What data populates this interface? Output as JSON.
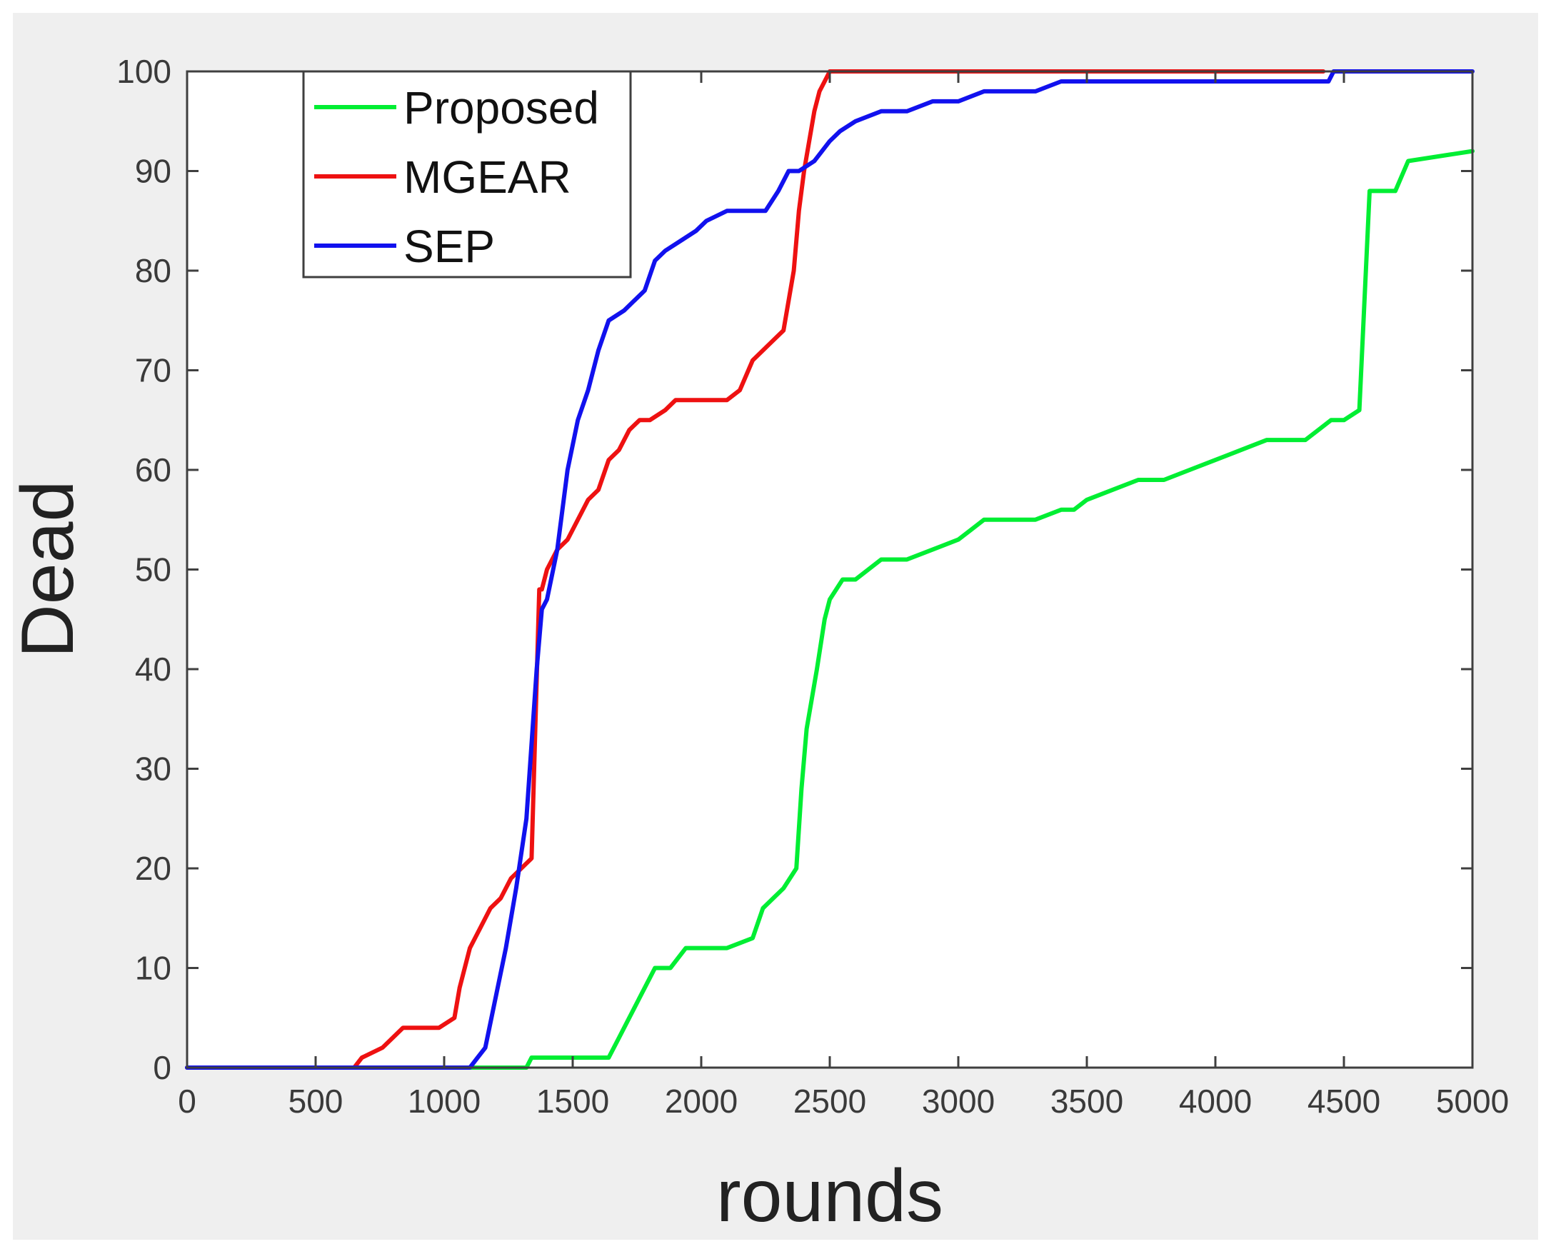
{
  "chart_data": {
    "type": "line",
    "title": "",
    "xlabel": "rounds",
    "ylabel": "Dead",
    "xlim": [
      0,
      5000
    ],
    "ylim": [
      0,
      100
    ],
    "xticks": [
      0,
      500,
      1000,
      1500,
      2000,
      2500,
      3000,
      3500,
      4000,
      4500,
      5000
    ],
    "yticks": [
      0,
      10,
      20,
      30,
      40,
      50,
      60,
      70,
      80,
      90,
      100
    ],
    "grid": false,
    "legend_position": "top-left",
    "series": [
      {
        "name": "Proposed",
        "color": "#00ee33",
        "x": [
          0,
          1100,
          1320,
          1340,
          1640,
          1680,
          1720,
          1760,
          1820,
          1880,
          1940,
          2000,
          2100,
          2200,
          2240,
          2280,
          2320,
          2370,
          2390,
          2410,
          2430,
          2450,
          2480,
          2500,
          2550,
          2600,
          2650,
          2700,
          2800,
          2900,
          3000,
          3050,
          3100,
          3200,
          3300,
          3400,
          3450,
          3500,
          3600,
          3700,
          3800,
          3900,
          4000,
          4100,
          4200,
          4300,
          4350,
          4400,
          4450,
          4500,
          4560,
          4600,
          4700,
          4750,
          5000
        ],
        "y": [
          0,
          0,
          0,
          1,
          1,
          3,
          5,
          7,
          10,
          10,
          12,
          12,
          12,
          13,
          16,
          17,
          18,
          20,
          28,
          34,
          37,
          40,
          45,
          47,
          49,
          49,
          50,
          51,
          51,
          52,
          53,
          54,
          55,
          55,
          55,
          56,
          56,
          57,
          58,
          59,
          59,
          60,
          61,
          62,
          63,
          63,
          63,
          64,
          65,
          65,
          66,
          88,
          88,
          91,
          92
        ]
      },
      {
        "name": "MGEAR",
        "color": "#ee1111",
        "x": [
          0,
          650,
          680,
          760,
          800,
          840,
          900,
          980,
          1040,
          1060,
          1100,
          1140,
          1180,
          1220,
          1260,
          1300,
          1340,
          1370,
          1380,
          1400,
          1440,
          1480,
          1520,
          1560,
          1600,
          1640,
          1680,
          1720,
          1760,
          1800,
          1860,
          1900,
          1960,
          2000,
          2100,
          2150,
          2200,
          2240,
          2280,
          2320,
          2360,
          2380,
          2400,
          2420,
          2440,
          2460,
          2480,
          2500,
          2600,
          3000,
          3500,
          4000,
          4420
        ],
        "y": [
          0,
          0,
          1,
          2,
          3,
          4,
          4,
          4,
          5,
          8,
          12,
          14,
          16,
          17,
          19,
          20,
          21,
          48,
          48,
          50,
          52,
          53,
          55,
          57,
          58,
          61,
          62,
          64,
          65,
          65,
          66,
          67,
          67,
          67,
          67,
          68,
          71,
          72,
          73,
          74,
          80,
          86,
          90,
          93,
          96,
          98,
          99,
          100,
          100,
          100,
          100,
          100,
          100
        ]
      },
      {
        "name": "SEP",
        "color": "#1111ee",
        "x": [
          0,
          1100,
          1130,
          1160,
          1200,
          1240,
          1280,
          1320,
          1360,
          1380,
          1400,
          1440,
          1480,
          1520,
          1560,
          1600,
          1640,
          1700,
          1740,
          1780,
          1820,
          1860,
          1920,
          1980,
          2020,
          2100,
          2160,
          2200,
          2250,
          2300,
          2340,
          2380,
          2440,
          2500,
          2540,
          2600,
          2700,
          2800,
          2900,
          3000,
          3100,
          3200,
          3300,
          3400,
          3500,
          3600,
          4000,
          4440,
          4460,
          5000
        ],
        "y": [
          0,
          0,
          1,
          2,
          7,
          12,
          18,
          25,
          40,
          46,
          47,
          52,
          60,
          65,
          68,
          72,
          75,
          76,
          77,
          78,
          81,
          82,
          83,
          84,
          85,
          86,
          86,
          86,
          86,
          88,
          90,
          90,
          91,
          93,
          94,
          95,
          96,
          96,
          97,
          97,
          98,
          98,
          98,
          99,
          99,
          99,
          99,
          99,
          100,
          100
        ]
      }
    ]
  }
}
